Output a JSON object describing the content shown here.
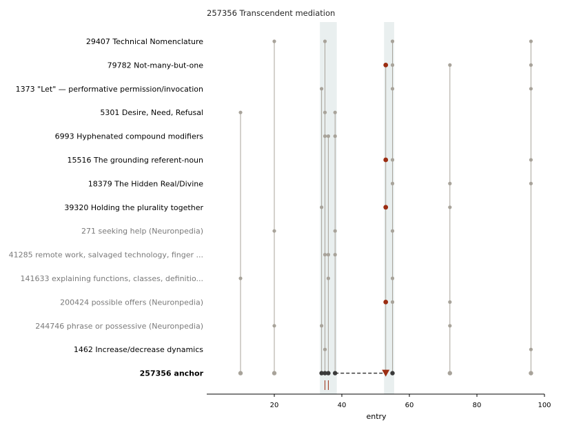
{
  "chart_data": {
    "type": "scatter",
    "title": "257356  Transcendent mediation",
    "xlabel": "entry",
    "xlim": [
      0,
      100
    ],
    "xticks": [
      "20",
      "40",
      "60",
      "80",
      "100"
    ],
    "highlight_bands": [
      [
        33.5,
        38.5
      ],
      [
        52.5,
        55.5
      ]
    ],
    "colors": {
      "point": "#a8a39a",
      "stem": "#a8a39a",
      "highlight_point": "#9b2d12",
      "anchor_point": "#3a3a3a",
      "band": "#e9efef",
      "marker_tick": "#9b2d12"
    },
    "rows": [
      {
        "label": "29407  Technical Nomenclature",
        "style": "normal",
        "points": [
          20,
          35,
          55,
          96
        ],
        "highlight": []
      },
      {
        "label": "79782  Not-many-but-one",
        "style": "normal",
        "points": [
          53,
          55,
          72,
          96
        ],
        "highlight": [
          53
        ]
      },
      {
        "label": "1373  \"Let\" — performative permission/invocation",
        "style": "normal",
        "points": [
          34,
          55,
          96
        ],
        "highlight": []
      },
      {
        "label": "5301  Desire, Need, Refusal",
        "style": "normal",
        "points": [
          10,
          35,
          38
        ],
        "highlight": []
      },
      {
        "label": "6993  Hyphenated compound modifiers",
        "style": "normal",
        "points": [
          35,
          36,
          38
        ],
        "highlight": []
      },
      {
        "label": "15516  The grounding referent-noun",
        "style": "normal",
        "points": [
          53,
          55,
          96
        ],
        "highlight": [
          53
        ]
      },
      {
        "label": "18379  The Hidden Real/Divine",
        "style": "normal",
        "points": [
          55,
          72,
          96
        ],
        "highlight": []
      },
      {
        "label": "39320  Holding the plurality together",
        "style": "normal",
        "points": [
          34,
          53,
          72
        ],
        "highlight": [
          53
        ]
      },
      {
        "label": "271  seeking help (Neuronpedia)",
        "style": "muted",
        "points": [
          20,
          38,
          55
        ],
        "highlight": []
      },
      {
        "label": "41285  remote work, salvaged technology, finger ...",
        "style": "muted",
        "points": [
          35,
          36,
          38
        ],
        "highlight": []
      },
      {
        "label": "141633  explaining functions, classes, definitio...",
        "style": "muted",
        "points": [
          10,
          36,
          55
        ],
        "highlight": []
      },
      {
        "label": "200424  possible offers (Neuronpedia)",
        "style": "muted",
        "points": [
          53,
          55,
          72
        ],
        "highlight": [
          53
        ]
      },
      {
        "label": "244746  phrase or possessive (Neuronpedia)",
        "style": "muted",
        "points": [
          20,
          34,
          72
        ],
        "highlight": []
      },
      {
        "label": "1462  Increase/decrease dynamics",
        "style": "normal",
        "points": [
          35,
          96
        ],
        "highlight": []
      },
      {
        "label": "257356  anchor",
        "style": "bold",
        "points": [
          10,
          20,
          34,
          35,
          36,
          38,
          53,
          55,
          72,
          96
        ],
        "anchor_dark": [
          34,
          35,
          36,
          38,
          55
        ],
        "anchor_triangle": 53,
        "dashed_from": 38,
        "dashed_to": 53
      }
    ],
    "bottom_markers": [
      35,
      36
    ]
  }
}
